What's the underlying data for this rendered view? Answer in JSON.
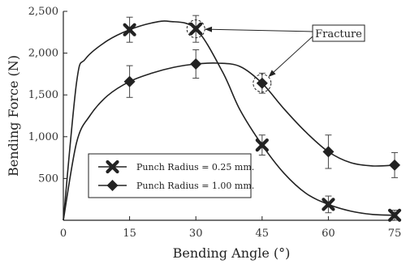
{
  "chart_data": {
    "type": "line",
    "title": "",
    "xlabel": "Bending Angle (°)",
    "ylabel": "Bending Force (N)",
    "xlim": [
      0,
      75
    ],
    "ylim": [
      0,
      2500
    ],
    "x_ticks": [
      "0",
      "15",
      "30",
      "45",
      "60",
      "75"
    ],
    "y_ticks": [
      "500",
      "1,000",
      "1,500",
      "2,000",
      "2,500"
    ],
    "grid": false,
    "legend_position": "lower-left",
    "x": [
      15,
      30,
      45,
      60,
      75
    ],
    "series": [
      {
        "name": "Punch Radius = 0.25 mm.",
        "marker": "cross",
        "values": [
          2280,
          2290,
          900,
          190,
          60
        ],
        "errors": [
          150,
          160,
          120,
          100,
          60
        ],
        "curve": [
          [
            0,
            0
          ],
          [
            3,
            1650
          ],
          [
            5,
            1930
          ],
          [
            10,
            2150
          ],
          [
            15,
            2280
          ],
          [
            20,
            2360
          ],
          [
            24,
            2380
          ],
          [
            30,
            2290
          ],
          [
            36,
            1780
          ],
          [
            40,
            1320
          ],
          [
            45,
            900
          ],
          [
            50,
            560
          ],
          [
            55,
            320
          ],
          [
            60,
            190
          ],
          [
            65,
            110
          ],
          [
            70,
            70
          ],
          [
            75,
            60
          ]
        ]
      },
      {
        "name": "Punch Radius = 1.00 mm.",
        "marker": "diamond",
        "values": [
          1660,
          1870,
          1640,
          820,
          660
        ],
        "errors": [
          190,
          170,
          120,
          200,
          150
        ],
        "curve": [
          [
            0,
            0
          ],
          [
            3,
            930
          ],
          [
            6,
            1250
          ],
          [
            10,
            1490
          ],
          [
            15,
            1660
          ],
          [
            20,
            1760
          ],
          [
            25,
            1830
          ],
          [
            30,
            1870
          ],
          [
            35,
            1880
          ],
          [
            40,
            1840
          ],
          [
            45,
            1640
          ],
          [
            50,
            1330
          ],
          [
            55,
            1050
          ],
          [
            60,
            820
          ],
          [
            65,
            690
          ],
          [
            70,
            650
          ],
          [
            75,
            660
          ]
        ]
      }
    ],
    "annotations": [
      {
        "text": "Fracture",
        "targets": [
          [
            30,
            2290
          ],
          [
            45,
            1640
          ]
        ]
      }
    ]
  }
}
